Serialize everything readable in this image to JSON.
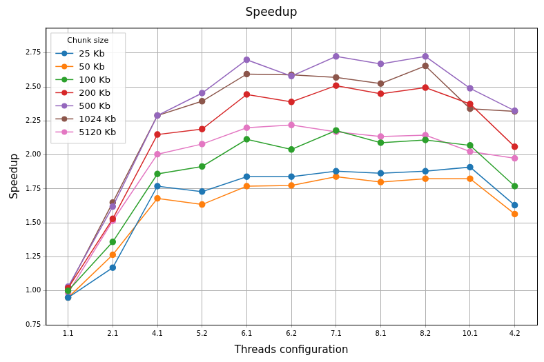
{
  "chart_data": {
    "type": "line",
    "title": "Speedup",
    "x_label": "Threads configuration",
    "y_label": "Speedup",
    "categories": [
      "1.1",
      "2.1",
      "4.1",
      "5.2",
      "6.1",
      "6.2",
      "7.1",
      "8.1",
      "8.2",
      "10.1",
      "4.2"
    ],
    "series": [
      {
        "name": "25 Kb",
        "color": "#1f77b4",
        "values": [
          0.95,
          1.17,
          1.77,
          1.73,
          1.84,
          1.84,
          1.88,
          1.865,
          1.88,
          1.91,
          1.63
        ]
      },
      {
        "name": "50 Kb",
        "color": "#ff7f0e",
        "values": [
          0.95,
          1.265,
          1.68,
          1.635,
          1.77,
          1.775,
          1.84,
          1.8,
          1.825,
          1.825,
          1.565
        ]
      },
      {
        "name": "100 Kb",
        "color": "#2ca02c",
        "values": [
          1.0,
          1.36,
          1.86,
          1.915,
          2.115,
          2.04,
          2.18,
          2.09,
          2.11,
          2.07,
          1.77
        ]
      },
      {
        "name": "200 Kb",
        "color": "#d62728",
        "values": [
          1.02,
          1.53,
          2.15,
          2.19,
          2.445,
          2.39,
          2.51,
          2.45,
          2.495,
          2.375,
          2.06
        ]
      },
      {
        "name": "500 Kb",
        "color": "#9467bd",
        "values": [
          1.03,
          1.62,
          2.29,
          2.455,
          2.7,
          2.58,
          2.725,
          2.67,
          2.725,
          2.49,
          2.325
        ]
      },
      {
        "name": "1024 Kb",
        "color": "#8c564b",
        "values": [
          1.02,
          1.65,
          2.29,
          2.395,
          2.595,
          2.59,
          2.57,
          2.525,
          2.655,
          2.34,
          2.32
        ]
      },
      {
        "name": "5120 Kb",
        "color": "#e377c2",
        "values": [
          0.985,
          1.515,
          2.005,
          2.08,
          2.2,
          2.22,
          2.17,
          2.135,
          2.145,
          2.025,
          1.975
        ]
      }
    ],
    "ylim": [
      0.75,
      2.935
    ],
    "yticks": [
      {
        "value": 0.75,
        "label": "0.75"
      },
      {
        "value": 1.0,
        "label": "1.00"
      },
      {
        "value": 1.25,
        "label": "1.25"
      },
      {
        "value": 1.5,
        "label": "1.50"
      },
      {
        "value": 1.75,
        "label": "1.75"
      },
      {
        "value": 2.0,
        "label": "2.00"
      },
      {
        "value": 2.25,
        "label": "2.25"
      },
      {
        "value": 2.5,
        "label": "2.50"
      },
      {
        "value": 2.75,
        "label": "2.75"
      }
    ],
    "grid": true,
    "marker": "circle",
    "legend": "upper left",
    "legend_title": "Chunk size"
  }
}
